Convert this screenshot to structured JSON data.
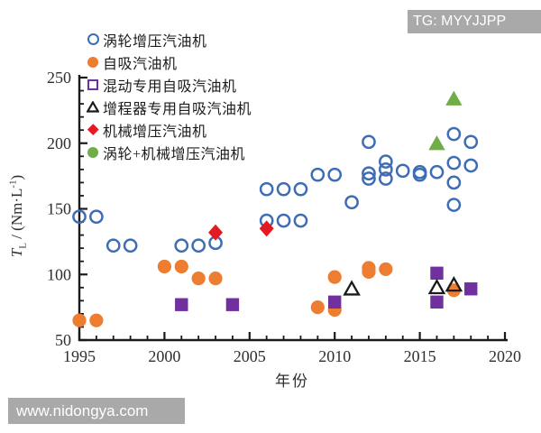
{
  "watermarks": {
    "top_right": "TG: MYYJJPP",
    "bottom_left": "www.nidongya.com",
    "box_color": "#a9a9a9",
    "text_color": "#ffffff"
  },
  "chart_data": {
    "type": "scatter",
    "title": "",
    "xlabel": "年份",
    "ylabel": "T_L / (Nm·L⁻¹)",
    "ylabel_parts": {
      "t": "T",
      "sub": "L",
      "mid": " / (Nm·L",
      "sup": "-1",
      "end": ")"
    },
    "xlim": [
      1995,
      2020
    ],
    "ylim": [
      50,
      250
    ],
    "x_ticks": [
      1995,
      2000,
      2005,
      2010,
      2015,
      2020
    ],
    "y_ticks": [
      50,
      100,
      150,
      200,
      250
    ],
    "x_minor_step": 1,
    "y_minor_step": 10,
    "grid": false,
    "legend_position": "upper-left-inside",
    "series": [
      {
        "name": "涡轮增压汽油机",
        "marker": "circle-open",
        "legend_marker": "circle-open",
        "color": "#3e6cb5",
        "points": [
          [
            1995,
            144
          ],
          [
            1996,
            144
          ],
          [
            1997,
            122
          ],
          [
            1998,
            122
          ],
          [
            2001,
            122
          ],
          [
            2002,
            122
          ],
          [
            2003,
            124
          ],
          [
            2006,
            165
          ],
          [
            2007,
            165
          ],
          [
            2008,
            165
          ],
          [
            2006,
            141
          ],
          [
            2007,
            141
          ],
          [
            2008,
            141
          ],
          [
            2009,
            176
          ],
          [
            2010,
            176
          ],
          [
            2011,
            155
          ],
          [
            2012,
            201
          ],
          [
            2012,
            177
          ],
          [
            2012,
            173
          ],
          [
            2013,
            186
          ],
          [
            2013,
            180
          ],
          [
            2013,
            173
          ],
          [
            2014,
            179
          ],
          [
            2015,
            178
          ],
          [
            2015,
            176
          ],
          [
            2016,
            178
          ],
          [
            2017,
            207
          ],
          [
            2017,
            185
          ],
          [
            2017,
            170
          ],
          [
            2017,
            153
          ],
          [
            2018,
            201
          ],
          [
            2018,
            183
          ]
        ]
      },
      {
        "name": "自吸汽油机",
        "marker": "circle-filled",
        "legend_marker": "circle-fill",
        "color": "#ed7d31",
        "points": [
          [
            1995,
            65
          ],
          [
            1996,
            65
          ],
          [
            2000,
            106
          ],
          [
            2001,
            106
          ],
          [
            2002,
            97
          ],
          [
            2003,
            97
          ],
          [
            2009,
            75
          ],
          [
            2010,
            73
          ],
          [
            2010,
            98
          ],
          [
            2012,
            105
          ],
          [
            2012,
            102
          ],
          [
            2013,
            104
          ],
          [
            2017,
            88
          ]
        ]
      },
      {
        "name": "混动专用自吸汽油机",
        "marker": "square-filled",
        "legend_marker": "square-open",
        "color": "#7030a0",
        "points": [
          [
            2001,
            77
          ],
          [
            2004,
            77
          ],
          [
            2010,
            79
          ],
          [
            2016,
            101
          ],
          [
            2016,
            79
          ],
          [
            2018,
            89
          ]
        ]
      },
      {
        "name": "增程器专用自吸汽油机",
        "marker": "triangle-open",
        "legend_marker": "triangle-open",
        "color": "#1a1a1a",
        "points": [
          [
            2011,
            89
          ],
          [
            2016,
            90
          ],
          [
            2017,
            92
          ]
        ]
      },
      {
        "name": "机械增压汽油机",
        "marker": "diamond-filled",
        "legend_marker": "diamond",
        "color": "#e41a22",
        "points": [
          [
            2003,
            132
          ],
          [
            2006,
            135
          ]
        ]
      },
      {
        "name": "涡轮+机械增压汽油机",
        "marker": "triangle-filled",
        "legend_marker": "circle-fill",
        "color": "#70ad47",
        "points": [
          [
            2016,
            200
          ],
          [
            2017,
            234
          ]
        ]
      }
    ]
  }
}
